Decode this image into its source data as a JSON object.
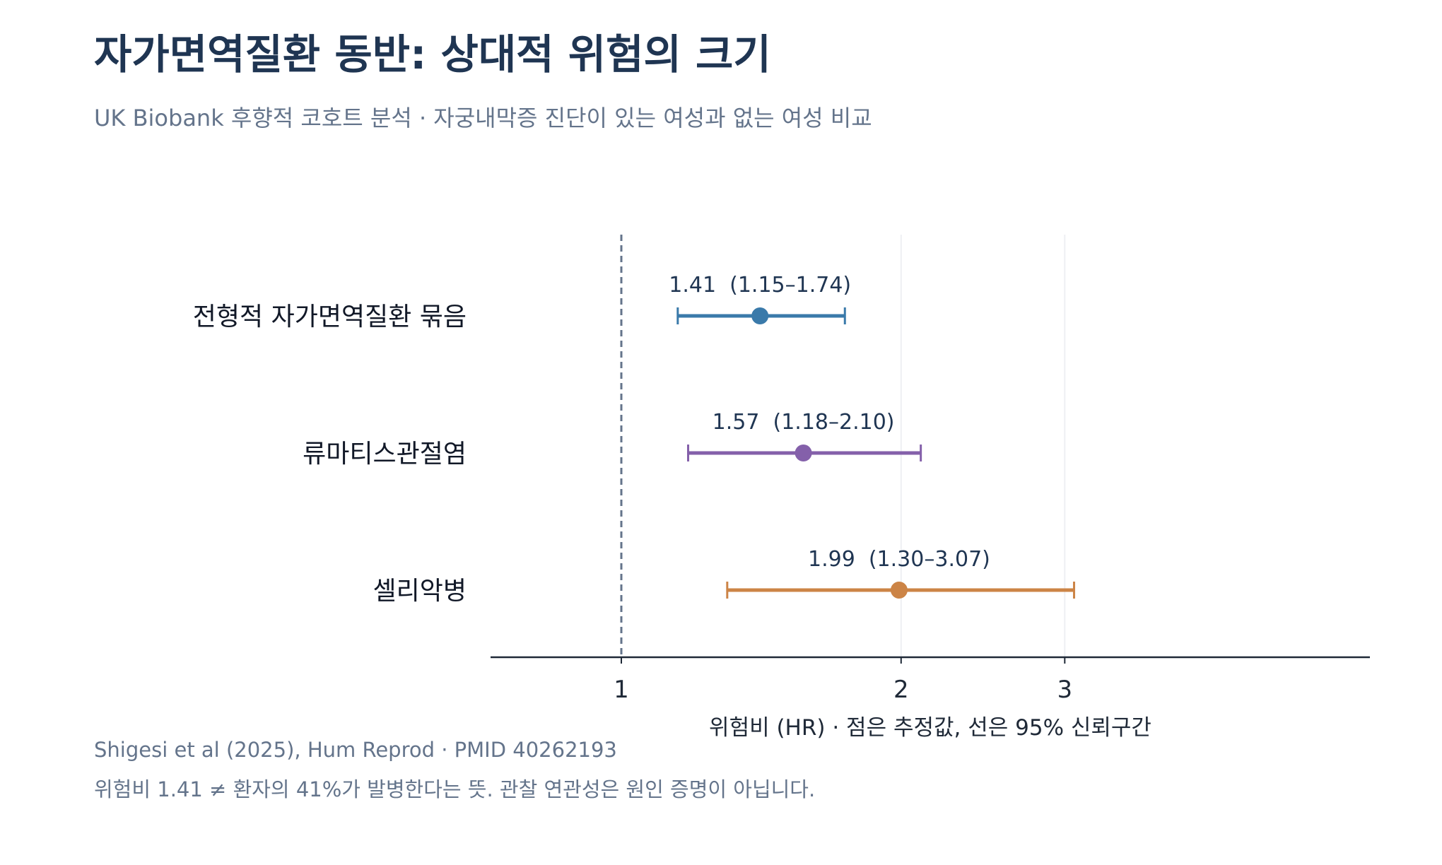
{
  "header": {
    "title": "자가면역질환 동반: 상대적 위험의 크기",
    "subtitle": "UK Biobank 후향적 코호트 분석 · 자궁내막증 진단이 있는 여성과 없는 여성 비교"
  },
  "chart_data": {
    "type": "forest",
    "xlabel": "위험비 (HR) · 점은 추정값, 선은 95% 신뢰구간",
    "x_scale": "log",
    "xlim": [
      0.72,
      3.4
    ],
    "x_ticks": [
      {
        "value": 1,
        "label": "1"
      },
      {
        "value": 2,
        "label": "2"
      },
      {
        "value": 3,
        "label": "3"
      }
    ],
    "reference_line": 1,
    "grid": "vertical at 2 and 3",
    "rows": [
      {
        "label": "전형적 자가면역질환 묶음",
        "hr": 1.41,
        "lo": 1.15,
        "hi": 1.74,
        "annotation": "1.41  (1.15–1.74)",
        "color": "#3a7aaa"
      },
      {
        "label": "류마티스관절염",
        "hr": 1.57,
        "lo": 1.18,
        "hi": 2.1,
        "annotation": "1.57  (1.18–2.10)",
        "color": "#8460aa"
      },
      {
        "label": "셀리악병",
        "hr": 1.99,
        "lo": 1.3,
        "hi": 3.07,
        "annotation": "1.99  (1.30–3.07)",
        "color": "#cc8446"
      }
    ]
  },
  "footer": {
    "source": "Shigesi et al (2025), Hum Reprod · PMID 40262193",
    "note": "위험비 1.41 ≠ 환자의 41%가 발병한다는 뜻. 관찰 연관성은 원인 증명이 아닙니다."
  }
}
